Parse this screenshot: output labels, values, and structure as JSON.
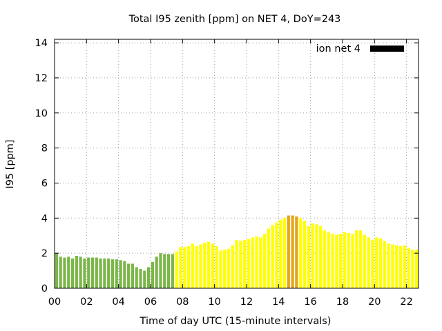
{
  "chart_data": {
    "type": "bar",
    "title": "Total I95 zenith [ppm] on NET 4, DoY=243",
    "xlabel": "Time of day UTC (15-minute intervals)",
    "ylabel": "I95 [ppm]",
    "xlim": [
      0,
      22.75
    ],
    "ylim": [
      0,
      14.2
    ],
    "x_ticks": [
      "00",
      "02",
      "04",
      "06",
      "08",
      "10",
      "12",
      "14",
      "16",
      "18",
      "20",
      "22"
    ],
    "y_ticks": [
      "0",
      "2",
      "4",
      "6",
      "8",
      "10",
      "12",
      "14"
    ],
    "interval_hours": 0.25,
    "grid": true,
    "legend_position": "top-right",
    "series": [
      {
        "name": "ion net 4",
        "legend_color": "#000000",
        "values": [
          2.0,
          1.8,
          1.75,
          1.8,
          1.7,
          1.85,
          1.8,
          1.7,
          1.75,
          1.75,
          1.75,
          1.7,
          1.7,
          1.7,
          1.65,
          1.65,
          1.6,
          1.55,
          1.4,
          1.4,
          1.2,
          1.1,
          1.0,
          1.2,
          1.5,
          1.8,
          2.0,
          1.95,
          1.95,
          1.95,
          2.1,
          2.35,
          2.35,
          2.4,
          2.55,
          2.4,
          2.5,
          2.6,
          2.65,
          2.55,
          2.4,
          2.15,
          2.2,
          2.25,
          2.45,
          2.75,
          2.7,
          2.75,
          2.8,
          2.9,
          2.95,
          2.9,
          3.1,
          3.4,
          3.6,
          3.75,
          3.9,
          4.0,
          4.15,
          4.15,
          4.1,
          4.0,
          3.85,
          3.55,
          3.7,
          3.65,
          3.55,
          3.3,
          3.2,
          3.1,
          3.05,
          3.1,
          3.2,
          3.15,
          3.1,
          3.3,
          3.3,
          3.05,
          2.9,
          2.75,
          2.9,
          2.85,
          2.7,
          2.55,
          2.5,
          2.45,
          2.4,
          2.45,
          2.3,
          2.2,
          2.2
        ]
      }
    ],
    "level_colors": {
      "low": "#7ab648",
      "moderate": "#ffff00",
      "high": "#e8a317"
    },
    "level_thresholds": [
      2.0,
      4.0
    ]
  }
}
